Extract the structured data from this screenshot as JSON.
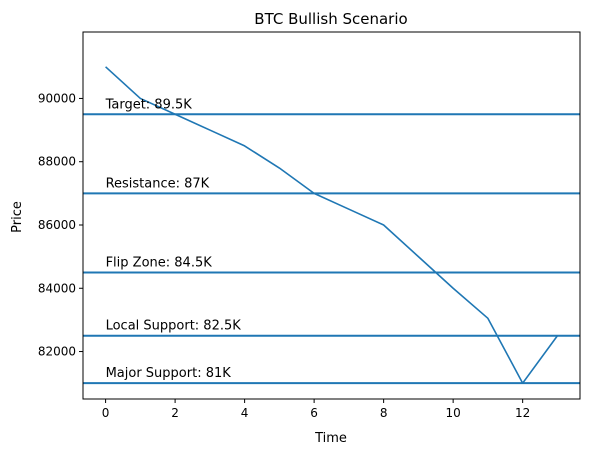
{
  "chart_data": {
    "type": "line",
    "title": "BTC Bullish Scenario",
    "xlabel": "Time",
    "ylabel": "Price",
    "xlim": [
      -0.65,
      13.65
    ],
    "ylim": [
      80500,
      92100
    ],
    "xticks": [
      0,
      2,
      4,
      6,
      8,
      10,
      12
    ],
    "yticks": [
      82000,
      84000,
      86000,
      88000,
      90000
    ],
    "grid": false,
    "series": [
      {
        "color": "#1f77b4",
        "x": [
          0,
          1,
          2,
          3,
          4,
          5,
          6,
          7,
          8,
          9,
          10,
          11,
          12,
          13
        ],
        "y": [
          91000,
          90000,
          89500,
          89000,
          88500,
          87800,
          87000,
          86500,
          86000,
          85000,
          84000,
          83050,
          81000,
          82500
        ]
      }
    ],
    "levels": [
      {
        "value": 89500,
        "label": "Target: 89.5K"
      },
      {
        "value": 87000,
        "label": "Resistance: 87K"
      },
      {
        "value": 84500,
        "label": "Flip Zone: 84.5K"
      },
      {
        "value": 82500,
        "label": "Local Support: 82.5K"
      },
      {
        "value": 81000,
        "label": "Major Support: 81K"
      }
    ],
    "level_color": "#1f77b4"
  }
}
